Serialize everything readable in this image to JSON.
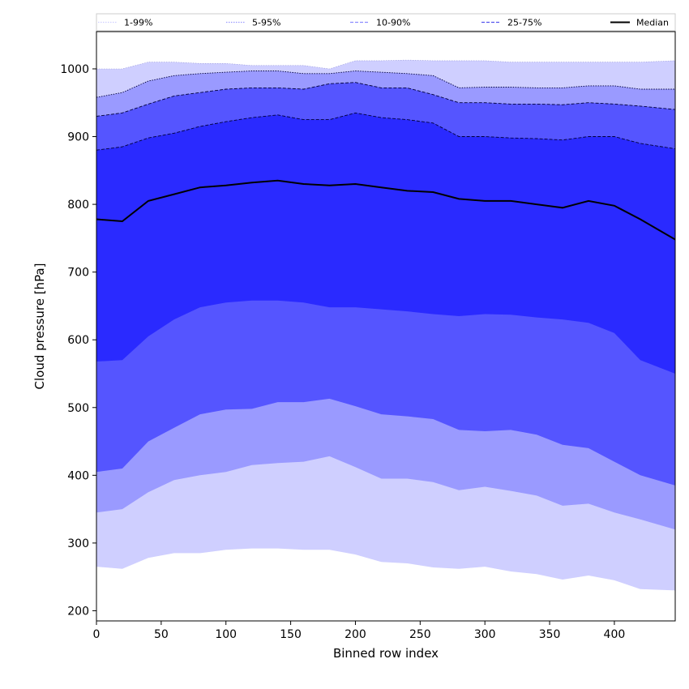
{
  "chart_data": {
    "type": "area",
    "xlabel": "Binned row index",
    "ylabel": "Cloud pressure [hPa]",
    "xlim": [
      0,
      447
    ],
    "ylim": [
      185,
      1055
    ],
    "xticks": [
      0,
      50,
      100,
      150,
      200,
      250,
      300,
      350,
      400
    ],
    "yticks": [
      200,
      300,
      400,
      500,
      600,
      700,
      800,
      900,
      1000
    ],
    "grid": false,
    "legend_position": "top",
    "legend": [
      {
        "label": "1-99%",
        "style": "dotted",
        "color": "#cfcfff"
      },
      {
        "label": "5-95%",
        "style": "dotted",
        "color": "#9a9aff"
      },
      {
        "label": "10-90%",
        "style": "dashed",
        "color": "#8c8cff"
      },
      {
        "label": "25-75%",
        "style": "dashed",
        "color": "#5555ee"
      },
      {
        "label": "Median",
        "style": "solid",
        "color": "#000000"
      }
    ],
    "x": [
      0,
      20,
      40,
      60,
      80,
      100,
      120,
      140,
      160,
      180,
      200,
      220,
      240,
      260,
      280,
      300,
      320,
      340,
      360,
      380,
      400,
      420,
      447
    ],
    "bands": [
      {
        "label": "1-99%",
        "color": "#cfcfff",
        "lower": [
          265,
          262,
          278,
          285,
          285,
          290,
          292,
          292,
          290,
          290,
          283,
          272,
          270,
          264,
          262,
          265,
          258,
          254,
          246,
          252,
          245,
          232,
          230
        ],
        "upper": [
          1000,
          1000,
          1010,
          1010,
          1008,
          1008,
          1005,
          1005,
          1005,
          1000,
          1012,
          1012,
          1013,
          1012,
          1012,
          1012,
          1010,
          1010,
          1010,
          1010,
          1010,
          1010,
          1012
        ]
      },
      {
        "label": "5-95%",
        "color": "#9a9aff",
        "lower": [
          345,
          350,
          375,
          393,
          400,
          405,
          415,
          418,
          420,
          428,
          412,
          395,
          395,
          390,
          378,
          383,
          377,
          370,
          355,
          358,
          345,
          335,
          320
        ],
        "upper": [
          958,
          965,
          982,
          990,
          993,
          995,
          997,
          997,
          993,
          993,
          997,
          995,
          993,
          990,
          972,
          973,
          973,
          972,
          972,
          975,
          975,
          970,
          970
        ]
      },
      {
        "label": "10-90%",
        "color": "#5555ff",
        "lower": [
          405,
          410,
          450,
          470,
          490,
          497,
          498,
          508,
          508,
          513,
          502,
          490,
          487,
          483,
          467,
          465,
          467,
          460,
          445,
          440,
          420,
          400,
          385
        ],
        "upper": [
          930,
          935,
          948,
          960,
          965,
          970,
          972,
          972,
          970,
          978,
          980,
          972,
          972,
          962,
          950,
          950,
          948,
          948,
          947,
          950,
          948,
          945,
          940
        ]
      },
      {
        "label": "25-75%",
        "color": "#2a2aff",
        "lower": [
          568,
          570,
          605,
          630,
          648,
          655,
          658,
          658,
          655,
          648,
          648,
          645,
          642,
          638,
          635,
          638,
          637,
          633,
          630,
          625,
          610,
          570,
          550
        ],
        "upper": [
          880,
          885,
          898,
          905,
          915,
          922,
          928,
          932,
          925,
          925,
          935,
          928,
          925,
          920,
          900,
          900,
          898,
          897,
          895,
          900,
          900,
          890,
          882
        ]
      }
    ],
    "median": {
      "label": "Median",
      "color": "#000000",
      "values": [
        778,
        775,
        805,
        815,
        825,
        828,
        832,
        835,
        830,
        828,
        830,
        825,
        820,
        818,
        808,
        805,
        805,
        800,
        795,
        805,
        798,
        778,
        748
      ]
    }
  }
}
